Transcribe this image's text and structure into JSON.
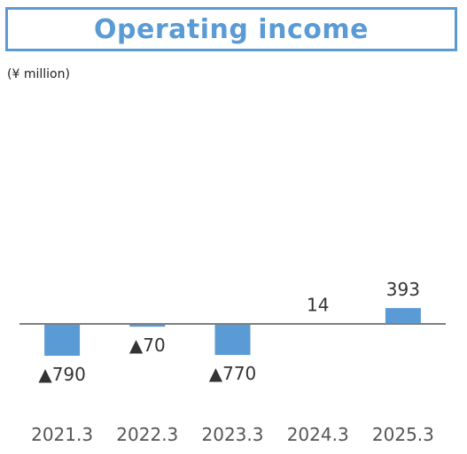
{
  "title": "Operating income",
  "unit_label": "(¥ million)",
  "colors": {
    "accent": "#5b9bd5",
    "bar": "#5b9bd5",
    "baseline": "#7f7f7f"
  },
  "chart_data": {
    "type": "bar",
    "title": "Operating income",
    "categories": [
      "2021.3",
      "2022.3",
      "2023.3",
      "2024.3",
      "2025.3"
    ],
    "values": [
      -790,
      -70,
      -770,
      14,
      393
    ],
    "data_labels": [
      "▲790",
      "▲70",
      "▲770",
      "14",
      "393"
    ],
    "ylabel": "(¥ million)",
    "grid": false,
    "legend": "none"
  }
}
